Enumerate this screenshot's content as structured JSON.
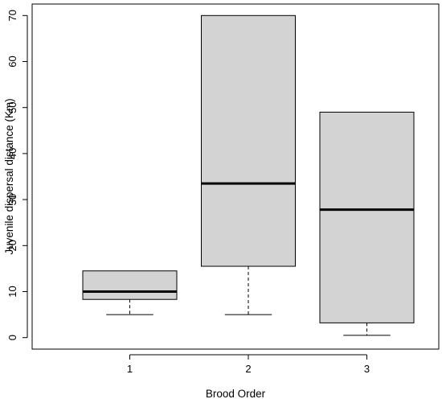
{
  "chart_data": {
    "type": "boxplot",
    "title": "",
    "xlabel": "Brood Order",
    "ylabel": "Juvenile dispersal distance (Km)",
    "categories": [
      "1",
      "2",
      "3"
    ],
    "ylim": [
      -2.5,
      72.5
    ],
    "yticks": [
      0,
      10,
      20,
      30,
      40,
      50,
      60,
      70
    ],
    "grid": false,
    "legend": "none",
    "boxes": [
      {
        "category": "1",
        "whisker_low": 5.0,
        "q1": 8.3,
        "median": 10.0,
        "q3": 14.5,
        "whisker_high": 14.5
      },
      {
        "category": "2",
        "whisker_low": 5.0,
        "q1": 15.5,
        "median": 33.5,
        "q3": 70.0,
        "whisker_high": 70.0
      },
      {
        "category": "3",
        "whisker_low": 0.5,
        "q1": 3.2,
        "median": 27.8,
        "q3": 49.0,
        "whisker_high": 49.0
      }
    ],
    "colors": {
      "box_fill": "#d3d3d3",
      "stroke": "#000000"
    }
  }
}
